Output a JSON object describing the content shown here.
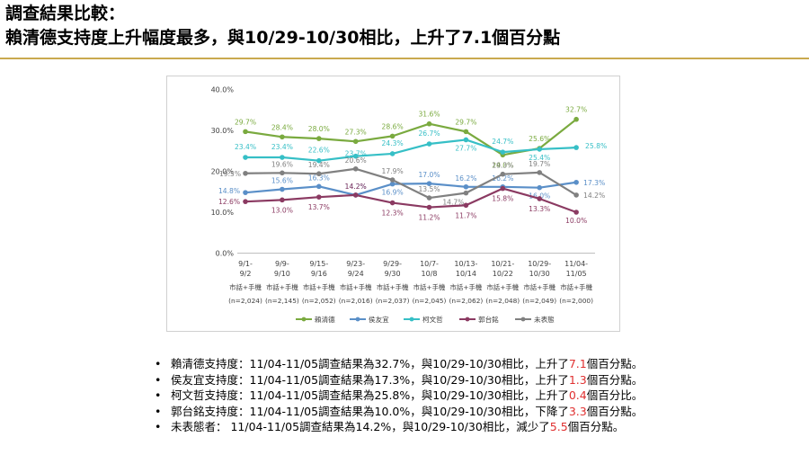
{
  "header": {
    "line1": "調查結果比較：",
    "line2": "賴清德支持度上升幅度最多，與10/29-10/30相比，上升了7.1個百分點"
  },
  "chart_data": {
    "type": "line",
    "ylim": [
      0,
      40
    ],
    "yticks": [
      "0.0%",
      "10.0%",
      "20.0%",
      "30.0%",
      "40.0%"
    ],
    "categories": [
      [
        "9/1-",
        "9/2",
        "市話+手機",
        "(n=2,024)"
      ],
      [
        "9/9-",
        "9/10",
        "市話+手機",
        "(n=2,145)"
      ],
      [
        "9/15-",
        "9/16",
        "市話+手機",
        "(n=2,052)"
      ],
      [
        "9/23-",
        "9/24",
        "市話+手機",
        "(n=2,016)"
      ],
      [
        "9/29-",
        "9/30",
        "市話+手機",
        "(n=2,037)"
      ],
      [
        "10/7-",
        "10/8",
        "市話+手機",
        "(n=2,045)"
      ],
      [
        "10/13-",
        "10/14",
        "市話+手機",
        "(n=2,062)"
      ],
      [
        "10/21-",
        "10/22",
        "市話+手機",
        "(n=2,048)"
      ],
      [
        "10/29-",
        "10/30",
        "市話+手機",
        "(n=2,049)"
      ],
      [
        "11/04-",
        "11/05",
        "市話+手機",
        "(n=2,000)"
      ]
    ],
    "series": [
      {
        "name": "賴清德",
        "color": "#7aaa3f",
        "values": [
          29.7,
          28.4,
          28.0,
          27.3,
          28.6,
          31.6,
          29.7,
          24.0,
          25.6,
          32.7
        ],
        "labels": [
          "29.7%",
          "28.4%",
          "28.0%",
          "27.3%",
          "28.6%",
          "31.6%",
          "29.7%",
          "24.0%",
          "25.6%",
          "32.7%"
        ]
      },
      {
        "name": "侯友宜",
        "color": "#5a8fc8",
        "values": [
          14.8,
          15.6,
          16.3,
          14.2,
          16.9,
          17.0,
          16.2,
          16.2,
          16.0,
          17.3
        ],
        "labels": [
          "14.8%",
          "15.6%",
          "16.3%",
          "14.2%",
          "16.9%",
          "17.0%",
          "16.2%",
          "16.2%",
          "16.0%",
          "17.3%"
        ]
      },
      {
        "name": "柯文哲",
        "color": "#36bfc6",
        "values": [
          23.4,
          23.4,
          22.6,
          23.7,
          24.3,
          26.7,
          27.7,
          24.7,
          25.4,
          25.8
        ],
        "labels": [
          "23.4%",
          "23.4%",
          "22.6%",
          "23.7%",
          "24.3%",
          "26.7%",
          "27.7%",
          "24.7%",
          "25.4%",
          "25.8%"
        ]
      },
      {
        "name": "郭台銘",
        "color": "#8b3a62",
        "values": [
          12.6,
          13.0,
          13.7,
          14.2,
          12.3,
          11.2,
          11.7,
          15.8,
          13.3,
          10.0
        ],
        "labels": [
          "12.6%",
          "13.0%",
          "13.7%",
          "14.2%",
          "12.3%",
          "11.2%",
          "11.7%",
          "15.8%",
          "13.3%",
          "10.0%"
        ]
      },
      {
        "name": "未表態",
        "color": "#808080",
        "values": [
          19.5,
          19.6,
          19.4,
          20.6,
          17.9,
          13.5,
          14.7,
          19.3,
          19.7,
          14.2
        ],
        "labels": [
          "19.5%",
          "19.6%",
          "19.4%",
          "20.6%",
          "17.9%",
          "13.5%",
          "14.7%",
          "19.3%",
          "19.7%",
          "14.2%"
        ]
      }
    ],
    "legend_position": "bottom",
    "grid": false
  },
  "bullets": [
    {
      "pre": "賴清德支持度：11/04-11/05調查結果為32.7%，與10/29-10/30相比，上升了",
      "num": "7.1",
      "post": "個百分點。"
    },
    {
      "pre": "侯友宜支持度：11/04-11/05調查結果為17.3%，與10/29-10/30相比，上升了",
      "num": "1.3",
      "post": "個百分點。"
    },
    {
      "pre": "柯文哲支持度：11/04-11/05調查結果為25.8%，與10/29-10/30相比，上升了",
      "num": "0.4",
      "post": "個百分比。"
    },
    {
      "pre": "郭台銘支持度：11/04-11/05調查結果為10.0%，與10/29-10/30相比，下降了",
      "num": "3.3",
      "post": "個百分點。"
    },
    {
      "pre": "未表態者： 11/04-11/05調查結果為14.2%，與10/29-10/30相比，減少了",
      "num": "5.5",
      "post": "個百分點。"
    }
  ]
}
